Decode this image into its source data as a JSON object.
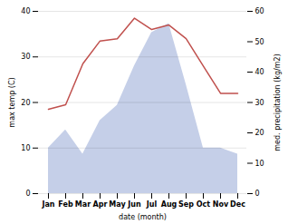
{
  "chart_data": {
    "type": "line",
    "categories": [
      "Jan",
      "Feb",
      "Mar",
      "Apr",
      "May",
      "Jun",
      "Jul",
      "Aug",
      "Sep",
      "Oct",
      "Nov",
      "Dec"
    ],
    "series": [
      {
        "type": "area",
        "axis": "y2",
        "color": "#c5cfe8",
        "values": [
          15,
          21,
          13,
          24,
          29,
          42,
          53,
          56,
          36,
          15,
          15,
          13
        ]
      },
      {
        "type": "line",
        "color": "#c0504d",
        "values": [
          18.5,
          19.5,
          28.5,
          33.5,
          34.0,
          38.5,
          36.0,
          37.0,
          34.0,
          28.0,
          22.0,
          22.0
        ]
      }
    ],
    "xlabel": "date (month)",
    "ylabel": "max temp (C)",
    "y2label": "med. precipitation (kg/m2)",
    "ylim": [
      0,
      40
    ],
    "yticks": [
      0,
      10,
      20,
      30,
      40
    ],
    "y2lim": [
      0,
      60
    ],
    "y2ticks": [
      0,
      10,
      20,
      30,
      40,
      50,
      60
    ],
    "grid": true
  }
}
